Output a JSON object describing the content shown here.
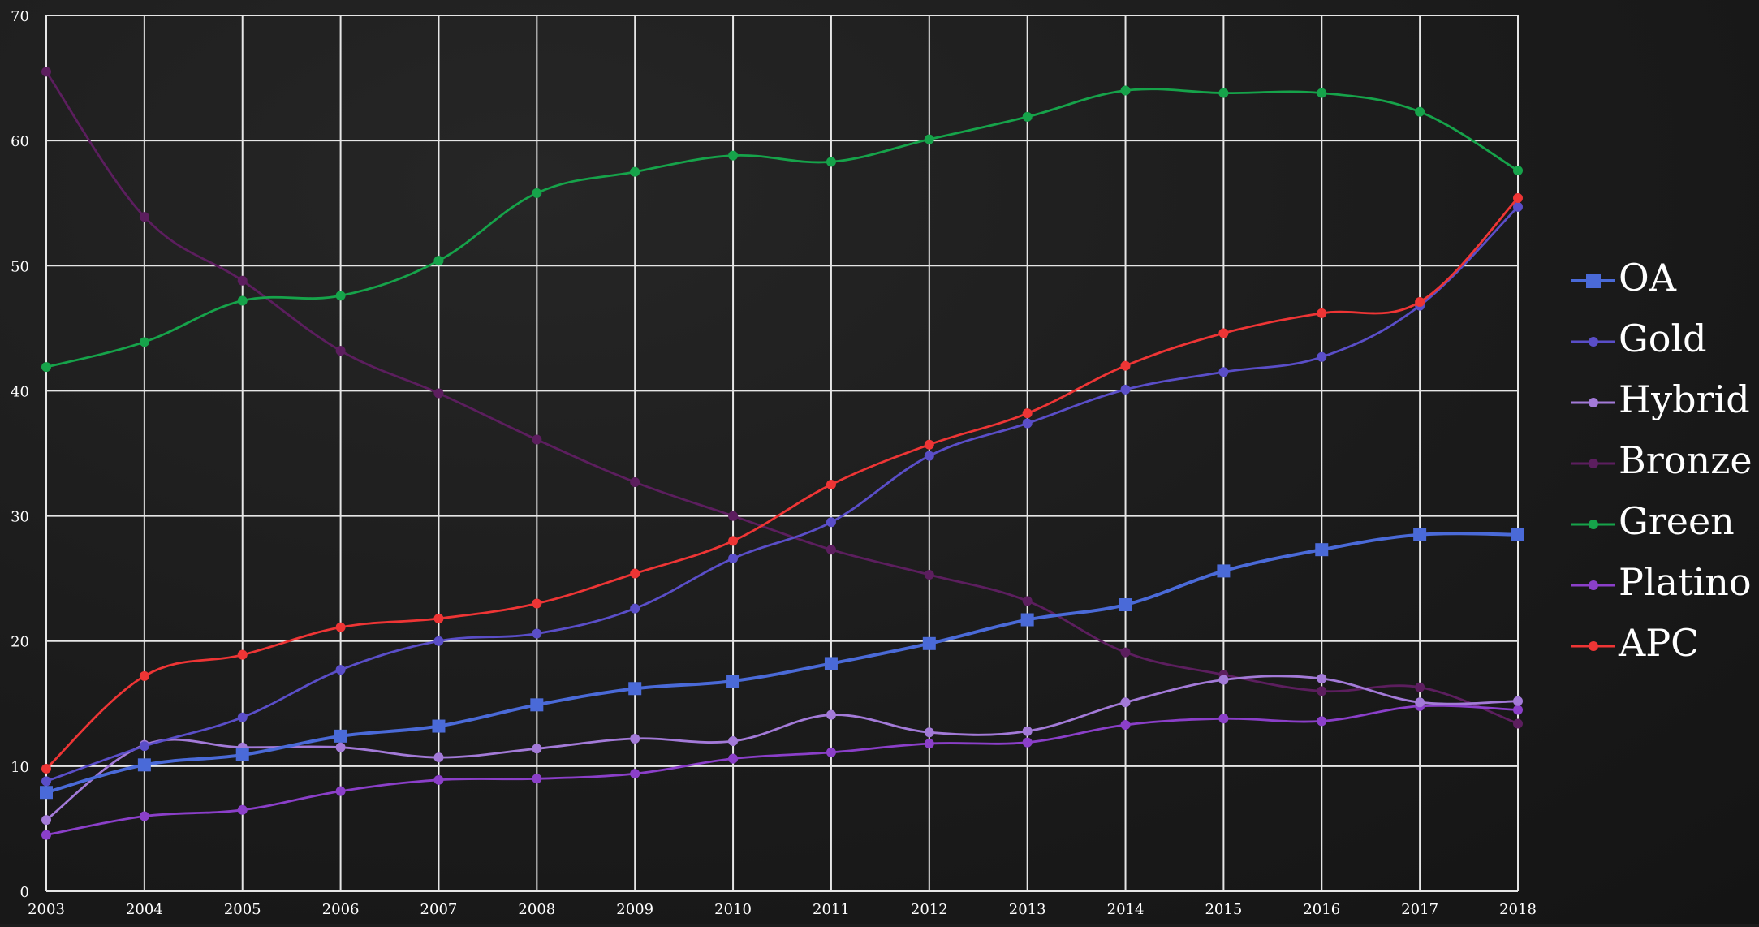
{
  "chart_data": {
    "type": "line",
    "title": "",
    "xlabel": "",
    "ylabel": "",
    "categories": [
      "2003",
      "2004",
      "2005",
      "2006",
      "2007",
      "2008",
      "2009",
      "2010",
      "2011",
      "2012",
      "2013",
      "2014",
      "2015",
      "2016",
      "2017",
      "2018"
    ],
    "ylim": [
      0,
      70
    ],
    "yticks": [
      "0",
      "10",
      "20",
      "30",
      "40",
      "50",
      "60",
      "70"
    ],
    "grid": true,
    "smooth": true,
    "legend_position": "right",
    "series": [
      {
        "name": "OA",
        "color": "#4a6ad8",
        "marker": "square",
        "values": [
          7.9,
          10.1,
          10.9,
          12.4,
          13.2,
          14.9,
          16.2,
          16.8,
          18.2,
          19.8,
          21.7,
          22.9,
          25.6,
          27.3,
          28.5,
          28.5
        ]
      },
      {
        "name": "Gold",
        "color": "#5a4ec8",
        "marker": "circle",
        "values": [
          8.8,
          11.6,
          13.9,
          17.7,
          20.0,
          20.6,
          22.6,
          26.6,
          29.5,
          34.8,
          37.4,
          40.1,
          41.5,
          42.7,
          46.8,
          54.7
        ]
      },
      {
        "name": "Hybrid",
        "color": "#a37ad8",
        "marker": "circle",
        "values": [
          5.7,
          11.7,
          11.5,
          11.5,
          10.7,
          11.4,
          12.2,
          12.0,
          14.1,
          12.7,
          12.8,
          15.1,
          16.9,
          17.0,
          15.1,
          15.2
        ]
      },
      {
        "name": "Bronze",
        "color": "#5c1e5e",
        "marker": "circle",
        "values": [
          65.5,
          53.9,
          48.8,
          43.2,
          39.8,
          36.1,
          32.7,
          30.0,
          27.3,
          25.3,
          23.2,
          19.1,
          17.3,
          16.0,
          16.3,
          13.4
        ]
      },
      {
        "name": "Green",
        "color": "#16a34a",
        "marker": "circle",
        "values": [
          41.9,
          43.9,
          47.2,
          47.6,
          50.4,
          55.8,
          57.5,
          58.8,
          58.3,
          60.1,
          61.9,
          64.0,
          63.8,
          63.8,
          62.3,
          57.6
        ]
      },
      {
        "name": "Platino",
        "color": "#8b3fc9",
        "marker": "circle",
        "values": [
          4.5,
          6.0,
          6.5,
          8.0,
          8.9,
          9.0,
          9.4,
          10.6,
          11.1,
          11.8,
          11.9,
          13.3,
          13.8,
          13.6,
          14.8,
          14.5
        ]
      },
      {
        "name": "APC",
        "color": "#ee3535",
        "marker": "circle",
        "values": [
          9.8,
          17.2,
          18.9,
          21.1,
          21.8,
          23.0,
          25.4,
          28.0,
          32.5,
          35.7,
          38.2,
          42.0,
          44.6,
          46.2,
          47.1,
          55.4
        ]
      }
    ]
  }
}
